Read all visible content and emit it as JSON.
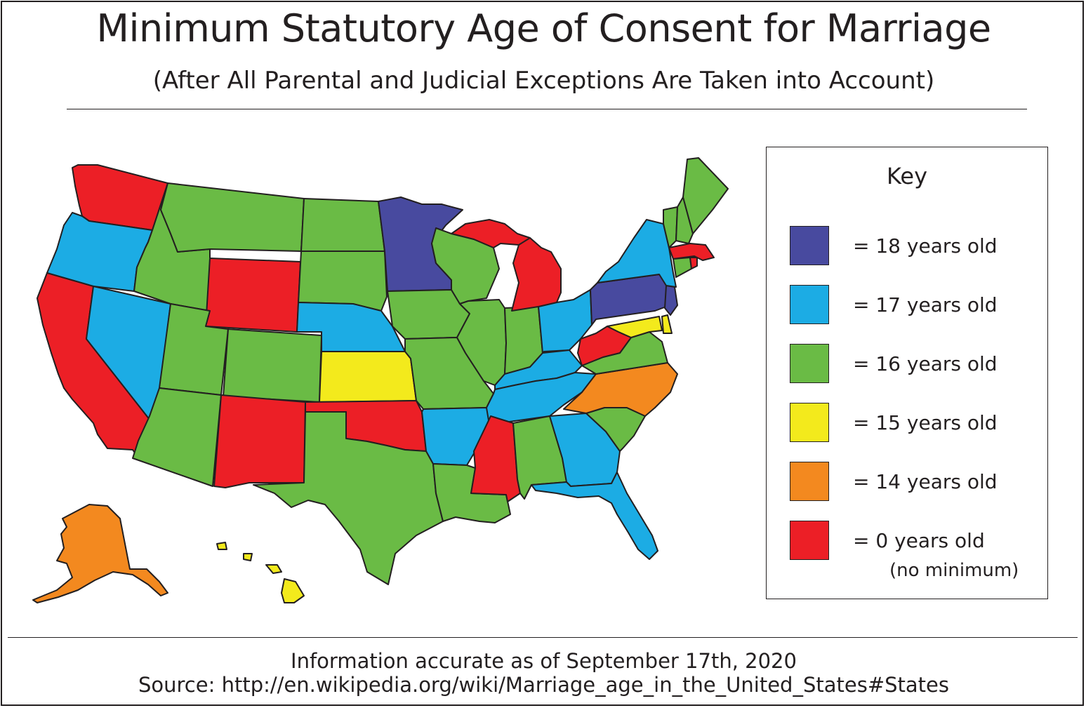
{
  "title": "Minimum Statutory Age of Consent for Marriage",
  "subtitle": "(After All Parental and Judicial Exceptions Are Taken into Account)",
  "legend": {
    "title": "Key",
    "items": [
      {
        "label": "= 18 years old",
        "color": "#484a9f"
      },
      {
        "label": "= 17 years old",
        "color": "#1cace4"
      },
      {
        "label": "= 16 years old",
        "color": "#6abb45"
      },
      {
        "label": "= 15 years old",
        "color": "#f3ea1c"
      },
      {
        "label": "= 14 years old",
        "color": "#f3891f"
      },
      {
        "label": "=   0 years old",
        "note": "(no minimum)",
        "color": "#ec1f26"
      }
    ]
  },
  "footer": {
    "accuracy": "Information accurate as of September 17th, 2020",
    "source": "Source: http://en.wikipedia.org/wiki/Marriage_age_in_the_United_States#States"
  }
}
